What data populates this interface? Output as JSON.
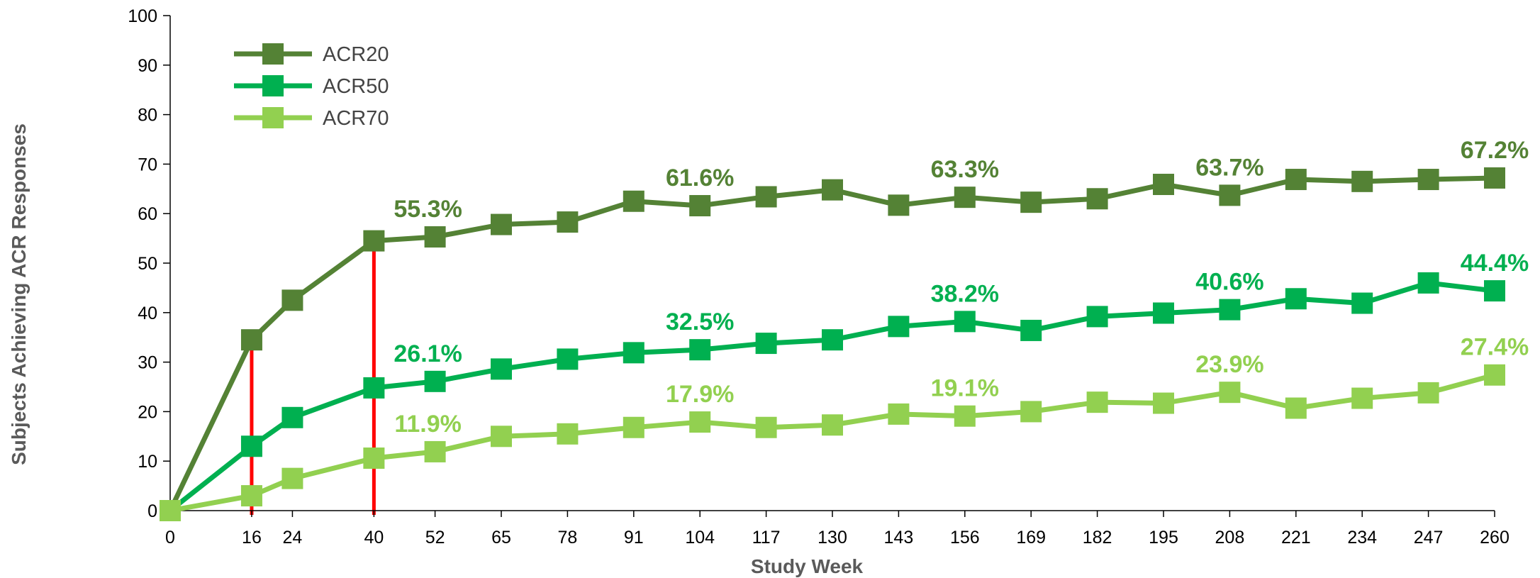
{
  "chart_data": {
    "type": "line",
    "xlabel": "Study Week",
    "ylabel": "Subjects Achieving ACR Responses",
    "ylim": [
      0,
      100
    ],
    "yticks": [
      0,
      10,
      20,
      30,
      40,
      50,
      60,
      70,
      80,
      90,
      100
    ],
    "xticks": [
      0,
      16,
      24,
      40,
      52,
      65,
      78,
      91,
      104,
      117,
      130,
      143,
      156,
      169,
      182,
      195,
      208,
      221,
      234,
      247,
      260
    ],
    "legend_position": "top-left",
    "grid": false,
    "series": [
      {
        "name": "ACR20",
        "color": "#548235",
        "x": [
          0,
          16,
          24,
          40,
          52,
          65,
          78,
          91,
          104,
          117,
          130,
          143,
          156,
          169,
          182,
          195,
          208,
          221,
          234,
          247,
          260
        ],
        "values": [
          0,
          34.5,
          42.5,
          54.5,
          55.3,
          57.8,
          58.3,
          62.5,
          61.6,
          63.4,
          64.8,
          61.7,
          63.3,
          62.3,
          63.0,
          65.9,
          63.7,
          66.9,
          66.5,
          66.9,
          67.2
        ],
        "labels": [
          {
            "x": 52,
            "text": "55.3%"
          },
          {
            "x": 104,
            "text": "61.6%"
          },
          {
            "x": 156,
            "text": "63.3%"
          },
          {
            "x": 208,
            "text": "63.7%"
          },
          {
            "x": 260,
            "text": "67.2%"
          }
        ]
      },
      {
        "name": "ACR50",
        "color": "#00B050",
        "x": [
          0,
          16,
          24,
          40,
          52,
          65,
          78,
          91,
          104,
          117,
          130,
          143,
          156,
          169,
          182,
          195,
          208,
          221,
          234,
          247,
          260
        ],
        "values": [
          0,
          13.0,
          18.8,
          24.8,
          26.1,
          28.6,
          30.6,
          31.9,
          32.5,
          33.8,
          34.5,
          37.2,
          38.2,
          36.4,
          39.2,
          39.9,
          40.6,
          42.8,
          41.9,
          46.0,
          44.4
        ],
        "labels": [
          {
            "x": 52,
            "text": "26.1%"
          },
          {
            "x": 104,
            "text": "32.5%"
          },
          {
            "x": 156,
            "text": "38.2%"
          },
          {
            "x": 208,
            "text": "40.6%"
          },
          {
            "x": 260,
            "text": "44.4%"
          }
        ]
      },
      {
        "name": "ACR70",
        "color": "#92D050",
        "x": [
          0,
          16,
          24,
          40,
          52,
          65,
          78,
          91,
          104,
          117,
          130,
          143,
          156,
          169,
          182,
          195,
          208,
          221,
          234,
          247,
          260
        ],
        "values": [
          0,
          3.0,
          6.5,
          10.6,
          11.9,
          15.0,
          15.5,
          16.8,
          17.9,
          16.8,
          17.3,
          19.5,
          19.1,
          20.0,
          21.9,
          21.7,
          23.9,
          20.7,
          22.7,
          23.8,
          27.4
        ],
        "labels": [
          {
            "x": 52,
            "text": "11.9%"
          },
          {
            "x": 104,
            "text": "17.9%"
          },
          {
            "x": 156,
            "text": "19.1%"
          },
          {
            "x": 208,
            "text": "23.9%"
          },
          {
            "x": 260,
            "text": "27.4%"
          }
        ]
      }
    ],
    "markers": [
      {
        "x": 16,
        "color": "#FF0000"
      },
      {
        "x": 40,
        "color": "#FF0000"
      }
    ]
  }
}
